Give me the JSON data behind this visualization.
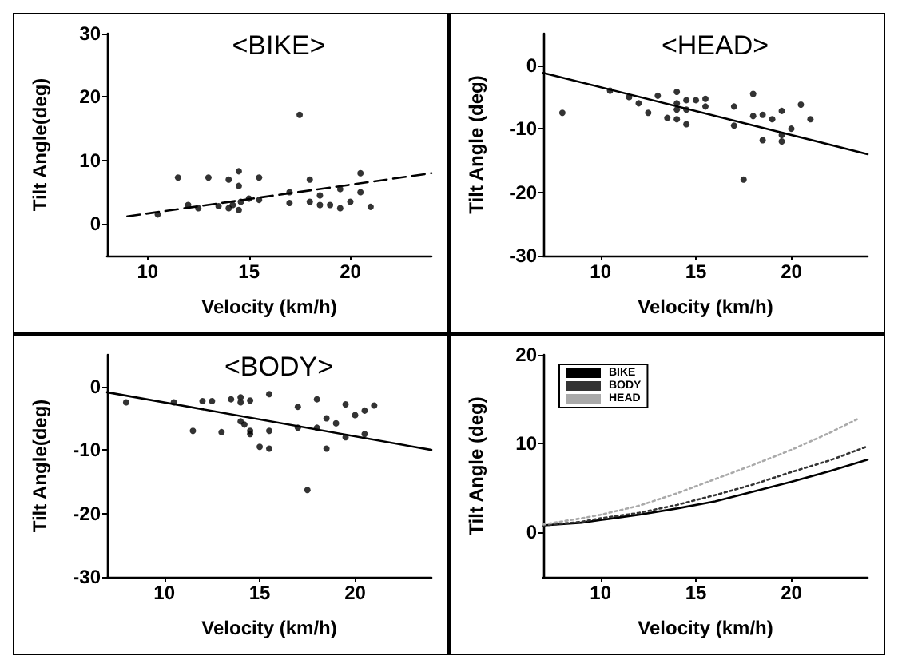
{
  "chart_data": [
    {
      "type": "scatter",
      "title": "<BIKE>",
      "xlabel": "Velocity (km/h)",
      "ylabel": "Tilt Angle(deg)",
      "xlim": [
        8,
        24
      ],
      "xticks": [
        10,
        15,
        20
      ],
      "ylim": [
        -5,
        30
      ],
      "yticks": [
        0,
        10,
        20,
        30
      ],
      "series": [
        {
          "color": "#000000",
          "marker": "circle",
          "x": [
            10.5,
            11.5,
            12,
            12.5,
            13,
            13.5,
            14,
            14,
            14.2,
            14.5,
            14.5,
            14.5,
            14.6,
            15,
            15.5,
            15.5,
            17,
            17,
            17.5,
            18,
            18,
            18.5,
            18.5,
            19,
            19.5,
            19.5,
            20,
            20.5,
            20.5,
            21
          ],
          "values": [
            1.5,
            7.3,
            3,
            2.5,
            7.3,
            2.8,
            2.5,
            7,
            3,
            8.3,
            6,
            2.2,
            3.5,
            4,
            7.3,
            3.8,
            5,
            3.3,
            17.2,
            7,
            3.5,
            4.5,
            3,
            3,
            5.5,
            2.5,
            3.5,
            8,
            5,
            2.7
          ]
        },
        {
          "type": "line",
          "color": "#000000",
          "marker": "none",
          "line_style": "dashed",
          "x": [
            9,
            24
          ],
          "values": [
            1.2,
            8
          ]
        }
      ]
    },
    {
      "type": "scatter",
      "title": "<HEAD>",
      "xlabel": "Velocity (km/h)",
      "ylabel": "Tilt Angle (deg)",
      "xlim": [
        7,
        24
      ],
      "xticks": [
        10,
        15,
        20
      ],
      "ylim": [
        -30,
        5
      ],
      "yticks": [
        0,
        -10,
        -20,
        -30
      ],
      "series": [
        {
          "color": "#000000",
          "marker": "circle",
          "x": [
            8,
            10.5,
            11.5,
            12,
            12.5,
            13,
            13.5,
            14,
            14,
            14,
            14,
            14.5,
            14.5,
            14.5,
            15,
            15.5,
            15.5,
            17,
            17,
            17.5,
            18,
            18,
            18.5,
            18.5,
            19,
            19.5,
            19.5,
            19.5,
            20,
            20.5,
            21
          ],
          "values": [
            -7.5,
            -4,
            -5,
            -6,
            -7.5,
            -4.8,
            -8.3,
            -4.2,
            -6,
            -7,
            -8.5,
            -5.5,
            -7,
            -9.3,
            -5.5,
            -5.3,
            -6.5,
            -6.5,
            -9.5,
            -18,
            -4.5,
            -8,
            -7.8,
            -11.8,
            -8.5,
            -7.2,
            -11,
            -12,
            -10,
            -6.2,
            -8.5
          ]
        },
        {
          "type": "line",
          "color": "#000000",
          "marker": "none",
          "line_style": "solid",
          "x": [
            7,
            24
          ],
          "values": [
            -1.2,
            -14
          ]
        }
      ]
    },
    {
      "type": "scatter",
      "title": "<BODY>",
      "xlabel": "Velocity (km/h)",
      "ylabel": "Tilt Angle(deg)",
      "xlim": [
        7,
        24
      ],
      "xticks": [
        10,
        15,
        20
      ],
      "ylim": [
        -30,
        5
      ],
      "yticks": [
        0,
        -10,
        -20,
        -30
      ],
      "series": [
        {
          "color": "#000000",
          "marker": "circle",
          "x": [
            8,
            10.5,
            11.5,
            12,
            12.5,
            13,
            13.5,
            14,
            14,
            14,
            14.2,
            14.5,
            14.5,
            14.5,
            15,
            15.5,
            15.5,
            15.5,
            17,
            17,
            17.5,
            18,
            18,
            18.5,
            18.5,
            19,
            19.5,
            19.5,
            20,
            20.5,
            20.5,
            21
          ],
          "values": [
            -2.5,
            -2.5,
            -7,
            -2.3,
            -2.3,
            -7.2,
            -2,
            -1.7,
            -2.5,
            -5.5,
            -6,
            -2.2,
            -7,
            -7.5,
            -9.5,
            -1.2,
            -7,
            -9.8,
            -3.2,
            -6.5,
            -16.3,
            -2,
            -6.5,
            -5,
            -9.8,
            -5.8,
            -2.8,
            -8,
            -4.5,
            -3.8,
            -7.5,
            -3
          ]
        },
        {
          "type": "line",
          "color": "#000000",
          "marker": "none",
          "line_style": "solid",
          "x": [
            7,
            24
          ],
          "values": [
            -0.9,
            -10
          ]
        }
      ]
    },
    {
      "type": "line",
      "xlabel": "Velocity (km/h)",
      "ylabel": "Tilt Angle (deg)",
      "xlim": [
        7,
        24
      ],
      "xticks": [
        10,
        15,
        20
      ],
      "ylim": [
        -5,
        20
      ],
      "yticks": [
        0,
        10,
        20
      ],
      "marker": "none",
      "legend": "top left",
      "x": [
        7,
        9,
        10,
        12,
        14,
        16,
        18,
        20,
        22,
        24
      ],
      "series": [
        {
          "name": "BIKE",
          "color": "#000000",
          "line_style": "solid",
          "values": [
            0.8,
            1.1,
            1.4,
            2,
            2.7,
            3.5,
            4.6,
            5.7,
            6.9,
            8.2
          ]
        },
        {
          "name": "BODY",
          "color": "#333333",
          "line_style": "dotted",
          "values": [
            0.8,
            1.2,
            1.6,
            2.2,
            3.1,
            4.2,
            5.4,
            6.8,
            8.1,
            9.7
          ]
        },
        {
          "name": "HEAD",
          "color": "#aaaaaa",
          "line_style": "dotted",
          "x": [
            7,
            9,
            10,
            12,
            14,
            16,
            18,
            20,
            22,
            23.5
          ],
          "values": [
            0.9,
            1.6,
            2,
            3,
            4.4,
            6,
            7.6,
            9.3,
            11.2,
            12.8
          ]
        }
      ]
    }
  ]
}
